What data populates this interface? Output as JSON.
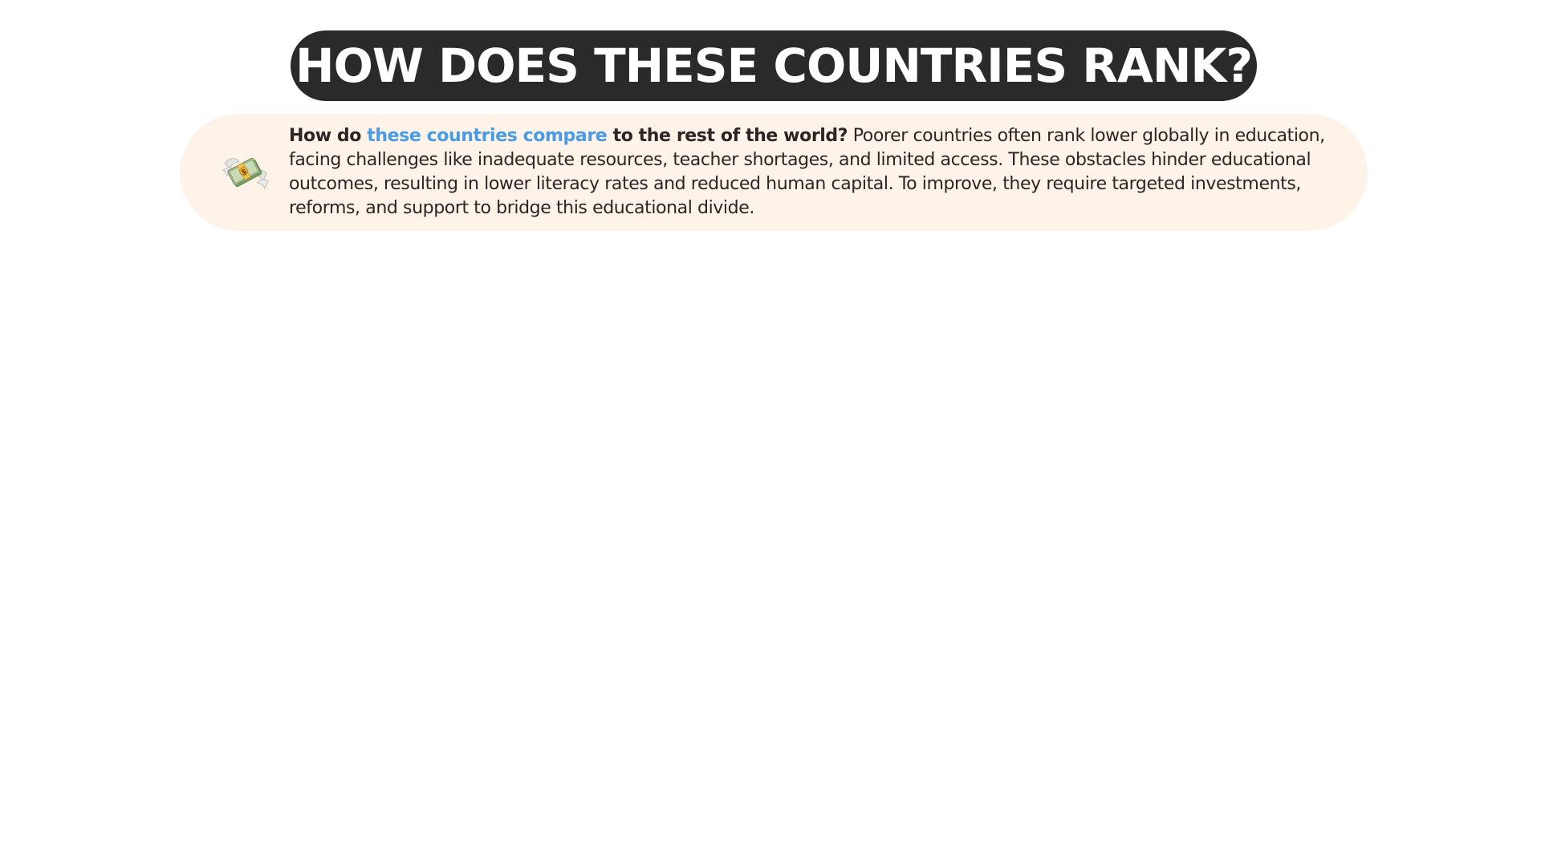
{
  "header": {
    "title": "HOW DOES THESE COUNTRIES RANK?"
  },
  "info": {
    "icon": "money-with-wings-icon",
    "lead_start": "How do ",
    "lead_accent": "these countries compare",
    "lead_end": " to the rest of the world?",
    "body": " Poorer countries often rank lower globally in education, facing challenges like inadequate resources, teacher shortages, and limited access. These obstacles hinder educational outcomes, resulting in lower literacy rates and reduced human capital. To improve, they require targeted investments, reforms, and support to bridge this educational divide."
  },
  "colors": {
    "title_bg": "#2a2a2a",
    "info_bg": "#fdf3e8",
    "accent": "#4a9be6"
  }
}
